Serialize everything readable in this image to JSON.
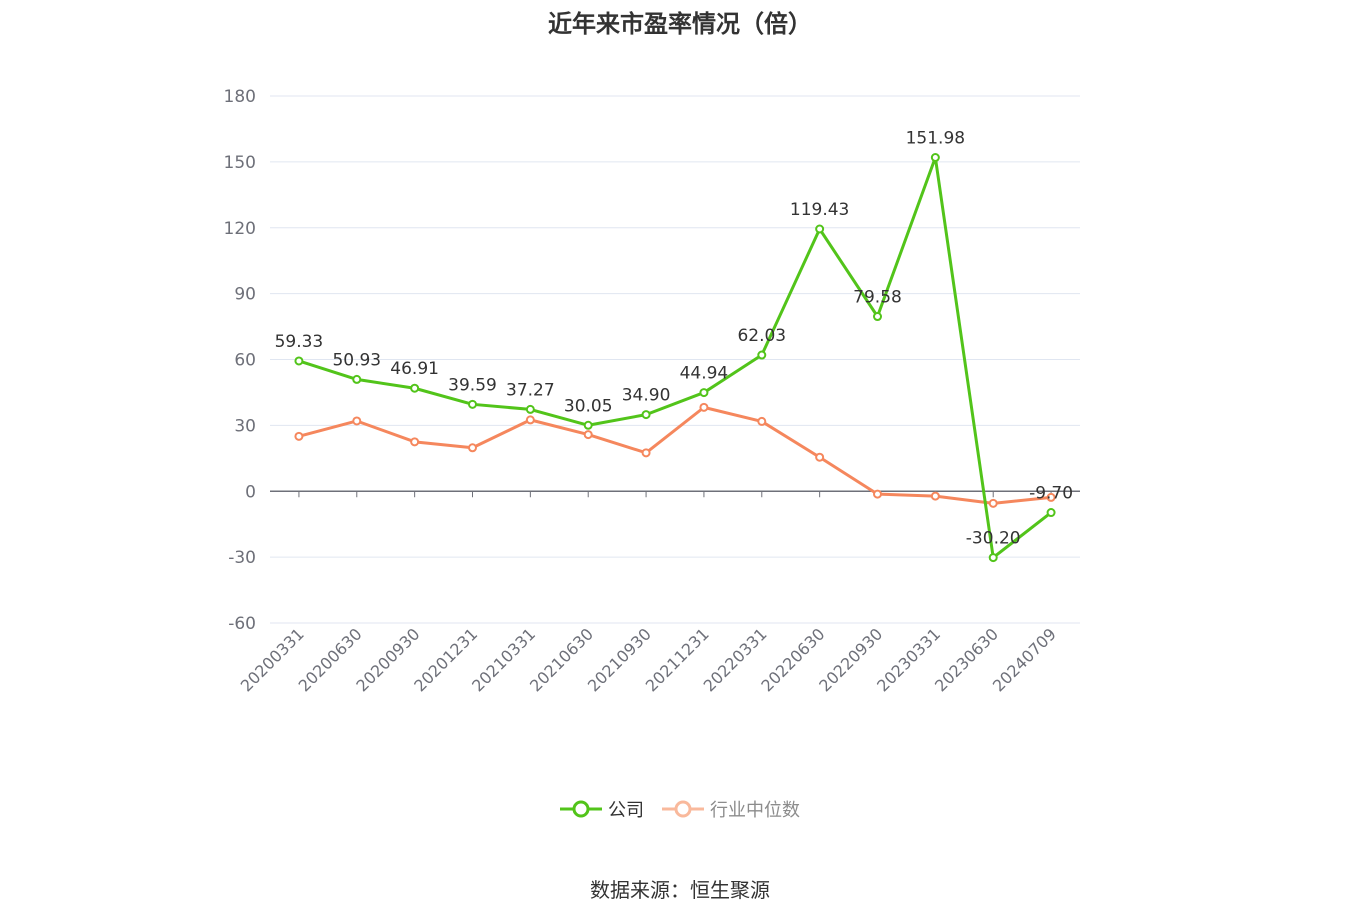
{
  "chart_data": {
    "type": "line",
    "title": "近年来市盈率情况（倍）",
    "categories": [
      "20200331",
      "20200630",
      "20200930",
      "20201231",
      "20210331",
      "20210630",
      "20210930",
      "20211231",
      "20220331",
      "20220630",
      "20220930",
      "20230331",
      "20230630",
      "20240709"
    ],
    "ylim": [
      -60,
      180
    ],
    "yticks": [
      -60,
      -30,
      0,
      30,
      60,
      90,
      120,
      150,
      180
    ],
    "grid": true,
    "legend_position": "bottom-center",
    "series": [
      {
        "name": "公司",
        "color": "#52c41a",
        "values": [
          59.33,
          50.93,
          46.91,
          39.59,
          37.27,
          30.05,
          34.9,
          44.94,
          62.03,
          119.43,
          79.58,
          151.98,
          -30.2,
          -9.7
        ],
        "labels": [
          "59.33",
          "50.93",
          "46.91",
          "39.59",
          "37.27",
          "30.05",
          "34.90",
          "44.94",
          "62.03",
          "119.43",
          "79.58",
          "151.98",
          "-30.20",
          "-9.70"
        ]
      },
      {
        "name": "行业中位数",
        "color": "#f5875d",
        "values": [
          25.0,
          32.0,
          22.5,
          19.8,
          32.5,
          25.8,
          17.5,
          38.2,
          31.8,
          15.5,
          -1.3,
          -2.2,
          -5.5,
          -2.8
        ]
      }
    ]
  },
  "legend": {
    "company_label": "公司",
    "industry_label": "行业中位数"
  },
  "source": "数据来源：恒生聚源"
}
